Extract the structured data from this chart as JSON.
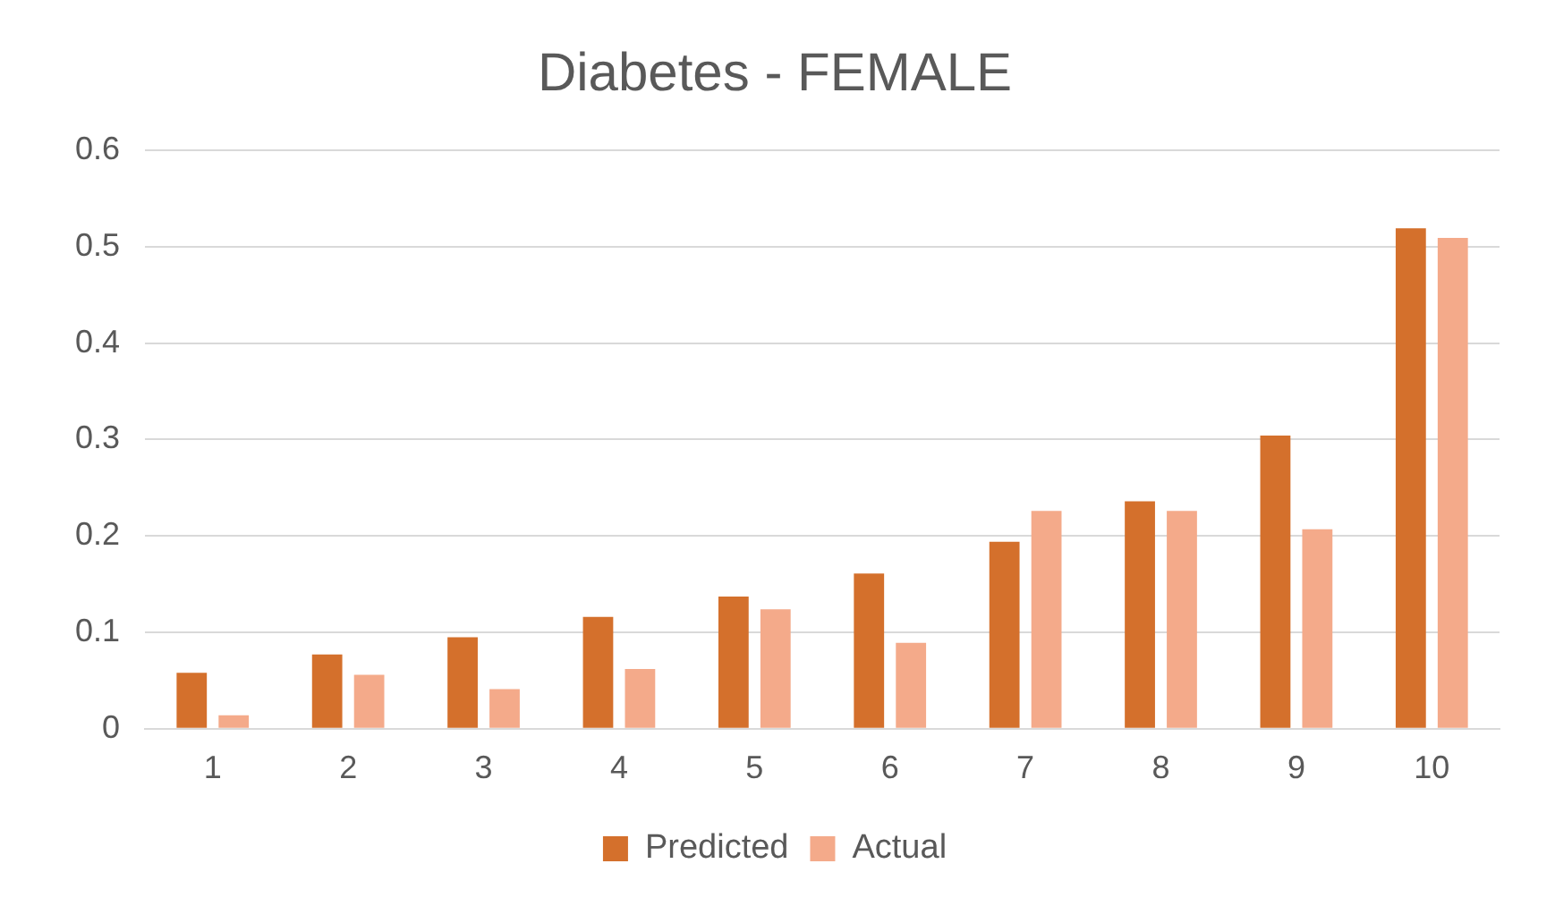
{
  "chart_data": {
    "type": "bar",
    "title": "Diabetes - FEMALE",
    "categories": [
      "1",
      "2",
      "3",
      "4",
      "5",
      "6",
      "7",
      "8",
      "9",
      "10"
    ],
    "series": [
      {
        "name": "Predicted",
        "color": "#d4702c",
        "values": [
          0.058,
          0.077,
          0.095,
          0.116,
          0.137,
          0.161,
          0.194,
          0.236,
          0.304,
          0.519
        ]
      },
      {
        "name": "Actual",
        "color": "#f4aa8a",
        "values": [
          0.014,
          0.056,
          0.041,
          0.062,
          0.124,
          0.089,
          0.226,
          0.226,
          0.207,
          0.509
        ]
      }
    ],
    "ylim": [
      0,
      0.6
    ],
    "yticks": [
      0,
      0.1,
      0.2,
      0.3,
      0.4,
      0.5,
      0.6
    ],
    "grid": "y",
    "legend": "bottom"
  }
}
